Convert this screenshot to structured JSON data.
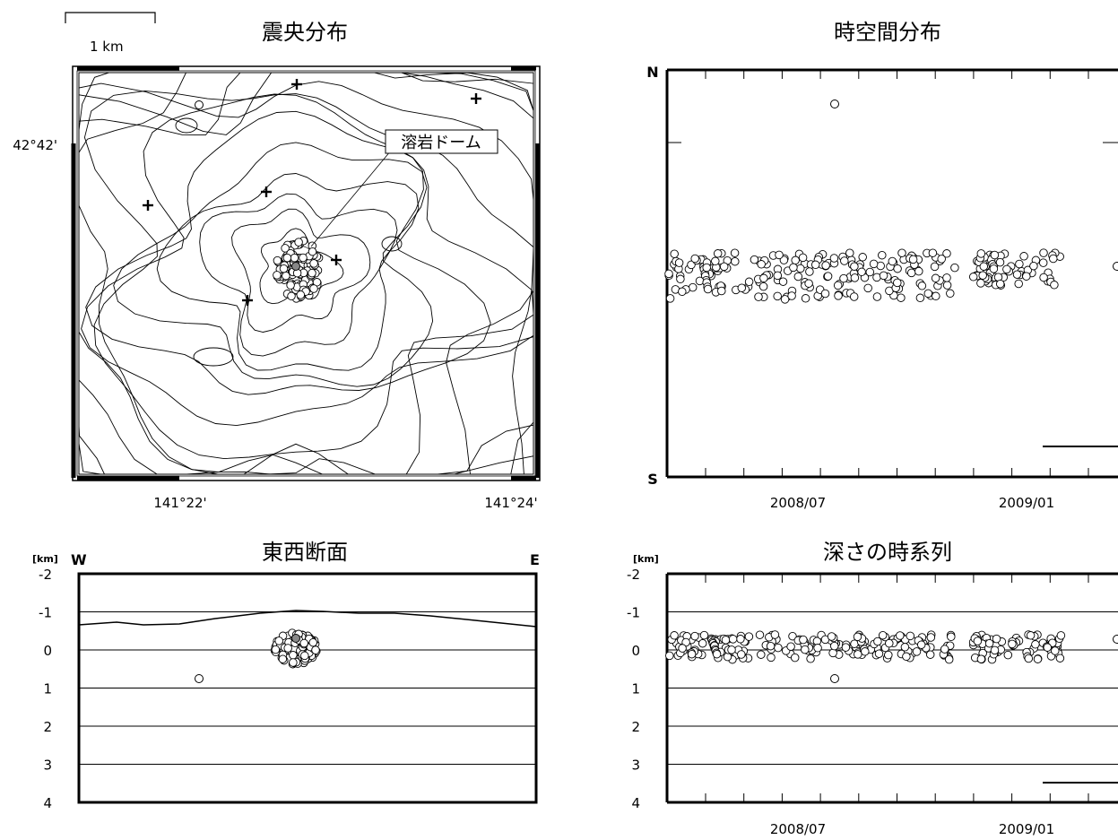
{
  "scale_bar_label": "1 km",
  "map": {
    "title": "震央分布",
    "lat_label": "42°42'",
    "lon_labels": [
      "141°22'",
      "141°24'"
    ],
    "dome_label": "溶岩ドーム"
  },
  "spacetime": {
    "title": "時空間分布",
    "north": "N",
    "south": "S",
    "x_ticks": [
      "2008/07",
      "2009/01"
    ]
  },
  "ew_section": {
    "title": "東西断面",
    "unit": "[km]",
    "west": "W",
    "east": "E",
    "y_ticks": [
      "-2",
      "-1",
      "0",
      "1",
      "2",
      "3",
      "4"
    ]
  },
  "depth_series": {
    "title": "深さの時系列",
    "unit": "[km]",
    "y_ticks": [
      "-2",
      "-1",
      "0",
      "1",
      "2",
      "3",
      "4"
    ],
    "x_ticks": [
      "2008/07",
      "2009/01"
    ]
  },
  "chart_data": [
    {
      "type": "scatter",
      "title": "震央分布",
      "description_values": {
        "main_cluster_center_lon": 141.3833,
        "main_cluster_center_lat": 42.6885,
        "outlier_lon": 141.363,
        "outlier_lat": 42.715
      },
      "xlabel": "",
      "ylabel": ""
    },
    {
      "type": "scatter",
      "title": "時空間分布",
      "x_range": [
        "2008/03",
        "2009/04"
      ],
      "x": [
        0.0,
        0.02,
        0.04,
        0.06,
        0.08,
        0.1,
        0.12,
        0.14,
        0.16,
        0.18,
        0.2,
        0.22,
        0.24,
        0.26,
        0.28,
        0.3,
        0.32,
        0.34,
        0.36,
        0.38,
        0.4,
        0.42,
        0.44,
        0.46,
        0.48,
        0.5,
        0.55,
        0.6,
        0.62,
        0.64,
        0.66,
        0.68,
        0.7,
        0.72,
        0.74,
        0.76,
        0.78,
        0.8,
        0.82,
        0.84,
        1.0,
        0.35
      ],
      "y": [
        0.5,
        0.5,
        0.49,
        0.5,
        0.5,
        0.49,
        0.51,
        0.5,
        0.5,
        0.49,
        0.5,
        0.5,
        0.5,
        0.51,
        0.49,
        0.5,
        0.5,
        0.49,
        0.5,
        0.5,
        0.5,
        0.49,
        0.5,
        0.5,
        0.49,
        0.51,
        0.5,
        0.5,
        0.49,
        0.5,
        0.51,
        0.5,
        0.5,
        0.49,
        0.5,
        0.5,
        0.51,
        0.5,
        0.49,
        0.5,
        0.5,
        0.9
      ],
      "ylabel": "",
      "xlabel": ""
    },
    {
      "type": "scatter",
      "title": "東西断面",
      "ylim": [
        4,
        -2
      ],
      "y_cluster_depth_range": [
        -0.5,
        0.4
      ],
      "outlier": {
        "depth": 1.4
      },
      "ylabel": "[km]"
    },
    {
      "type": "scatter",
      "title": "深さの時系列",
      "ylim": [
        4,
        -2
      ],
      "depths": [
        -0.3,
        -0.2,
        -0.4,
        -0.1,
        -0.3,
        -0.2,
        -0.25,
        -0.35,
        -0.15,
        -0.3,
        -0.2,
        -0.3,
        -0.1,
        -0.2,
        -0.3,
        -0.2,
        -0.25,
        -0.15,
        -0.2,
        -0.3,
        1.4
      ],
      "ylabel": "[km]"
    }
  ]
}
